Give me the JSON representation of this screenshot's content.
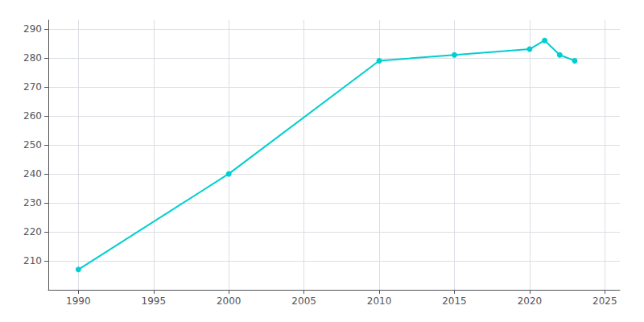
{
  "chart_data": {
    "type": "line",
    "x": [
      1990,
      2000,
      2010,
      2015,
      2020,
      2021,
      2022,
      2023
    ],
    "values": [
      207,
      240,
      279,
      281,
      283,
      286,
      281,
      279
    ],
    "color": "#00CED1",
    "marker": "circle",
    "xlim": [
      1988,
      2026
    ],
    "ylim": [
      200,
      293
    ],
    "xticks": [
      1990,
      1995,
      2000,
      2005,
      2010,
      2015,
      2020,
      2025
    ],
    "yticks": [
      210,
      220,
      230,
      240,
      250,
      260,
      270,
      280,
      290
    ],
    "grid": true
  }
}
